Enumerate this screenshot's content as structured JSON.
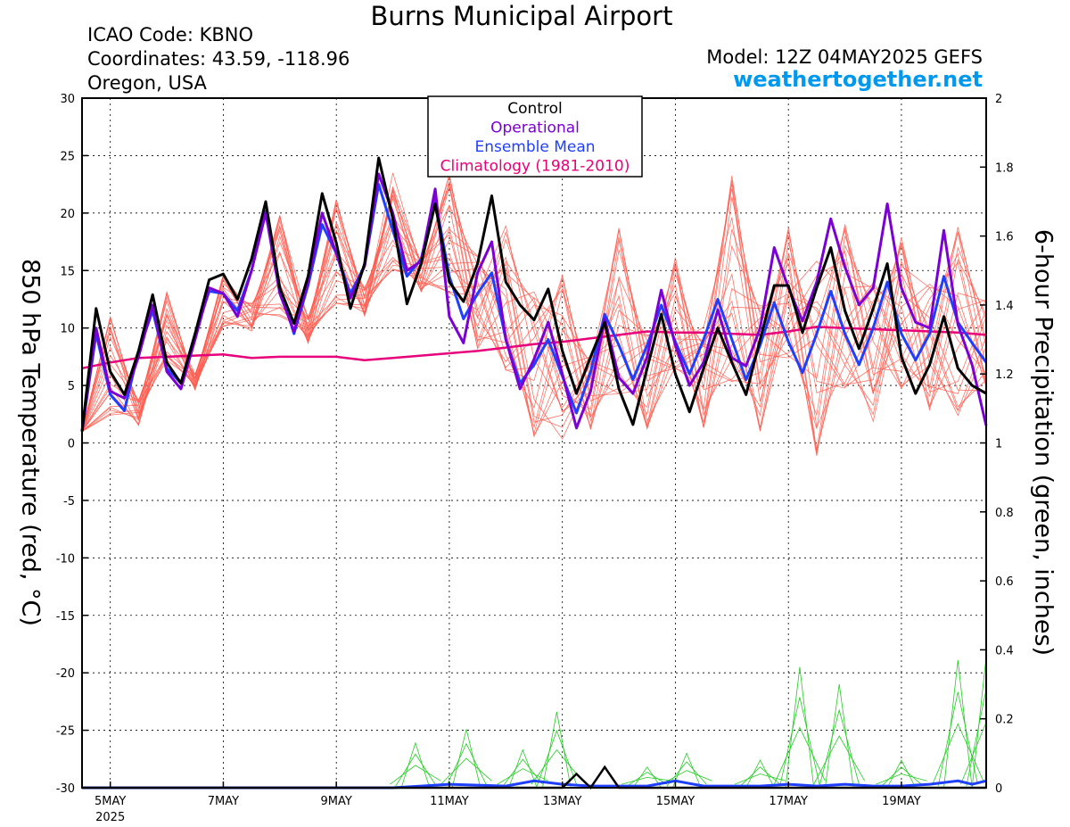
{
  "header": {
    "title": "Burns Municipal Airport",
    "icao": "ICAO Code: KBNO",
    "coordinates": "Coordinates: 43.59, -118.96",
    "region": "Oregon, USA",
    "model": "Model: 12Z 04MAY2025 GEFS",
    "site": "weathertogether.net"
  },
  "colors": {
    "control": "#000000",
    "operational": "#7b00d4",
    "ensemble_mean": "#1f3fff",
    "climatology": "#e8007a",
    "members": "#ff5a4e",
    "precip_members": "#22cc22",
    "site": "#0099ee"
  },
  "chart_data": {
    "type": "line",
    "ylabel": "850 hPa Temperature (red, °C)",
    "y2label": "6-hour Precipitation (green, inches)",
    "ylim": [
      -30,
      30
    ],
    "y2lim": [
      0,
      2
    ],
    "yticks": [
      30,
      25,
      20,
      15,
      10,
      5,
      0,
      -5,
      -10,
      -15,
      -20,
      -25,
      -30
    ],
    "y2ticks": [
      "2",
      "1.8",
      "1.6",
      "1.4",
      "1.2",
      "1",
      "0.8",
      "0.6",
      "0.4",
      "0.2",
      "0"
    ],
    "xlim": [
      4.5,
      20.5
    ],
    "xticks": [
      {
        "day": 5,
        "label": "5MAY",
        "sublabel": "2025"
      },
      {
        "day": 7,
        "label": "7MAY"
      },
      {
        "day": 9,
        "label": "9MAY"
      },
      {
        "day": 11,
        "label": "11MAY"
      },
      {
        "day": 13,
        "label": "13MAY"
      },
      {
        "day": 15,
        "label": "15MAY"
      },
      {
        "day": 17,
        "label": "17MAY"
      },
      {
        "day": 19,
        "label": "19MAY"
      }
    ],
    "grid": true,
    "legend_position": "top-center",
    "legend": [
      "Control",
      "Operational",
      "Ensemble Mean",
      "Climatology (1981-2010)"
    ],
    "series": [
      {
        "name": "Control",
        "x": [
          4.5,
          4.75,
          5.0,
          5.25,
          5.5,
          5.75,
          6.0,
          6.25,
          6.5,
          6.75,
          7.0,
          7.25,
          7.5,
          7.75,
          8.0,
          8.25,
          8.5,
          8.75,
          9.0,
          9.25,
          9.5,
          9.75,
          10.0,
          10.25,
          10.5,
          10.75,
          11.0,
          11.25,
          11.5,
          11.75,
          12.0,
          12.25,
          12.5,
          12.75,
          13.0,
          13.25,
          13.5,
          13.75,
          14.0,
          14.25,
          14.5,
          14.75,
          15.0,
          15.25,
          15.5,
          15.75,
          16.0,
          16.25,
          16.5,
          16.75,
          17.0,
          17.25,
          17.5,
          17.75,
          18.0,
          18.25,
          18.5,
          18.75,
          19.0,
          19.25,
          19.5,
          19.75,
          20.0,
          20.25,
          20.5
        ],
        "values": [
          1.0,
          11.7,
          6.2,
          4.2,
          8.0,
          12.9,
          7.0,
          5.2,
          9.5,
          14.2,
          14.7,
          12.5,
          16.0,
          21.0,
          13.5,
          10.4,
          14.5,
          21.7,
          17.4,
          11.7,
          15.6,
          24.8,
          19.5,
          12.1,
          15.6,
          20.8,
          14.0,
          12.3,
          15.6,
          21.5,
          14.0,
          12.0,
          10.7,
          13.4,
          8.0,
          4.3,
          7.5,
          10.5,
          4.7,
          1.6,
          6.5,
          11.2,
          6.0,
          2.7,
          6.5,
          10.0,
          7.0,
          4.2,
          9.0,
          13.7,
          13.7,
          9.6,
          13.5,
          17.0,
          11.5,
          8.2,
          11.7,
          15.6,
          7.5,
          4.3,
          6.8,
          11.0,
          6.5,
          5.0,
          4.3
        ]
      },
      {
        "name": "Operational",
        "x": [
          4.5,
          4.75,
          5.0,
          5.25,
          5.5,
          5.75,
          6.0,
          6.25,
          6.5,
          6.75,
          7.0,
          7.25,
          7.5,
          7.75,
          8.0,
          8.25,
          8.5,
          8.75,
          9.0,
          9.25,
          9.5,
          9.75,
          10.0,
          10.25,
          10.5,
          10.75,
          11.0,
          11.25,
          11.5,
          11.75,
          12.0,
          12.25,
          12.5,
          12.75,
          13.0,
          13.25,
          13.5,
          13.75,
          14.0,
          14.25,
          14.5,
          14.75,
          15.0,
          15.25,
          15.5,
          15.75,
          16.0,
          16.25,
          16.5,
          16.75,
          17.0,
          17.25,
          17.5,
          17.75,
          18.0,
          18.25,
          18.5,
          18.75,
          19.0,
          19.25,
          19.5,
          19.75,
          20.0,
          20.25,
          20.5
        ],
        "values": [
          1.0,
          10.0,
          4.5,
          3.9,
          7.5,
          12.0,
          6.2,
          4.7,
          9.0,
          13.5,
          13.0,
          11.0,
          15.0,
          20.0,
          13.0,
          9.7,
          14.0,
          20.0,
          16.5,
          12.6,
          15.4,
          23.4,
          20.0,
          15.0,
          15.8,
          22.1,
          11.0,
          8.7,
          14.8,
          17.5,
          9.0,
          4.7,
          7.3,
          10.5,
          6.0,
          1.3,
          4.5,
          10.8,
          5.7,
          4.3,
          7.5,
          13.3,
          8.5,
          5.0,
          7.0,
          11.6,
          7.4,
          6.7,
          10.0,
          17.0,
          13.5,
          10.6,
          14.0,
          19.5,
          15.3,
          12.0,
          13.5,
          20.8,
          13.5,
          10.5,
          10.0,
          18.5,
          10.3,
          6.8,
          1.5
        ]
      },
      {
        "name": "Ensemble Mean",
        "x": [
          4.5,
          4.75,
          5.0,
          5.25,
          5.5,
          5.75,
          6.0,
          6.25,
          6.5,
          6.75,
          7.0,
          7.25,
          7.5,
          7.75,
          8.0,
          8.25,
          8.5,
          8.75,
          9.0,
          9.25,
          9.5,
          9.75,
          10.0,
          10.25,
          10.5,
          10.75,
          11.0,
          11.25,
          11.5,
          11.75,
          12.0,
          12.25,
          12.5,
          12.75,
          13.0,
          13.25,
          13.5,
          13.75,
          14.0,
          14.25,
          14.5,
          14.75,
          15.0,
          15.25,
          15.5,
          15.75,
          16.0,
          16.25,
          16.5,
          16.75,
          17.0,
          17.25,
          17.5,
          17.75,
          18.0,
          18.25,
          18.5,
          18.75,
          19.0,
          19.25,
          19.5,
          19.75,
          20.0,
          20.25,
          20.5
        ],
        "values": [
          1.0,
          9.5,
          4.2,
          2.8,
          8.0,
          11.5,
          6.5,
          5.2,
          9.5,
          13.2,
          13.0,
          11.5,
          15.0,
          20.2,
          13.5,
          9.5,
          13.7,
          19.0,
          16.5,
          13.0,
          15.4,
          22.5,
          18.5,
          14.5,
          16.0,
          21.2,
          14.5,
          10.8,
          13.0,
          14.8,
          9.0,
          5.2,
          6.8,
          9.0,
          5.8,
          2.6,
          6.2,
          11.2,
          8.5,
          5.5,
          8.5,
          12.0,
          8.8,
          6.0,
          9.0,
          12.5,
          9.0,
          5.5,
          8.5,
          12.2,
          8.8,
          6.1,
          9.5,
          13.2,
          9.5,
          6.8,
          10.0,
          14.0,
          9.5,
          7.2,
          9.5,
          14.5,
          10.5,
          8.7,
          7.0
        ]
      },
      {
        "name": "Climatology (1981-2010)",
        "x": [
          4.5,
          5.0,
          5.5,
          6.0,
          6.5,
          7.0,
          7.5,
          8.0,
          8.5,
          9.0,
          9.5,
          10.0,
          10.5,
          11.0,
          11.5,
          12.0,
          12.5,
          13.0,
          13.5,
          14.0,
          14.5,
          15.0,
          15.5,
          16.0,
          16.5,
          17.0,
          17.5,
          18.0,
          18.5,
          19.0,
          19.5,
          20.0,
          20.5
        ],
        "values": [
          6.5,
          7.0,
          7.4,
          7.5,
          7.6,
          7.7,
          7.4,
          7.5,
          7.5,
          7.5,
          7.2,
          7.4,
          7.6,
          7.8,
          8.0,
          8.3,
          8.6,
          8.8,
          9.1,
          9.4,
          9.7,
          9.6,
          9.6,
          9.5,
          9.4,
          9.7,
          10.1,
          10.0,
          9.9,
          9.8,
          9.7,
          9.6,
          9.4
        ]
      }
    ],
    "members_temperature_envelope": {
      "x": [
        4.5,
        5.0,
        5.5,
        6.0,
        6.5,
        7.0,
        7.5,
        8.0,
        8.5,
        9.0,
        9.5,
        10.0,
        10.5,
        11.0,
        11.5,
        12.0,
        12.5,
        13.0,
        13.5,
        14.0,
        14.5,
        15.0,
        15.5,
        16.0,
        16.5,
        17.0,
        17.5,
        18.0,
        18.5,
        19.0,
        19.5,
        20.0,
        20.5
      ],
      "low": [
        1.0,
        2.0,
        1.5,
        6.0,
        4.5,
        10.0,
        9.5,
        9.5,
        8.5,
        12.0,
        10.5,
        14.0,
        13.0,
        13.0,
        6.5,
        5.0,
        0.0,
        -0.5,
        0.0,
        3.0,
        1.0,
        4.0,
        0.0,
        4.0,
        1.0,
        5.0,
        -3.0,
        4.0,
        1.5,
        2.0,
        2.0,
        2.0,
        3.0
      ],
      "high": [
        1.0,
        11.5,
        4.0,
        14.5,
        6.0,
        15.0,
        12.5,
        22.0,
        11.0,
        22.0,
        14.0,
        24.0,
        16.0,
        24.5,
        18.0,
        19.0,
        14.0,
        16.5,
        9.0,
        19.0,
        10.0,
        18.0,
        11.0,
        24.0,
        13.0,
        21.0,
        16.0,
        20.0,
        15.5,
        21.0,
        14.0,
        20.0,
        14.0
      ]
    },
    "precipitation": {
      "units": "inches",
      "control": {
        "x": [
          4.5,
          10.75,
          11.0,
          12.0,
          12.75,
          13.0,
          13.25,
          13.5,
          13.75,
          14.0,
          14.25,
          20.5
        ],
        "values": [
          0,
          0,
          0,
          0,
          0,
          0,
          0.04,
          0,
          0.06,
          0,
          0,
          0
        ]
      },
      "ensemble_mean": {
        "x": [
          4.5,
          10.0,
          10.5,
          11.0,
          12.0,
          12.5,
          13.0,
          13.5,
          14.0,
          14.5,
          15.0,
          15.5,
          16.0,
          16.5,
          17.0,
          17.5,
          18.0,
          18.5,
          19.0,
          19.5,
          20.0,
          20.25,
          20.5
        ],
        "values": [
          0,
          0,
          0.005,
          0.01,
          0.005,
          0.02,
          0.01,
          0.005,
          0.005,
          0.005,
          0.02,
          0.005,
          0.005,
          0.005,
          0.01,
          0.005,
          0.01,
          0.005,
          0.005,
          0.01,
          0.02,
          0.01,
          0.02
        ]
      },
      "member_peaks": [
        {
          "x": 10.4,
          "value": 0.13
        },
        {
          "x": 11.3,
          "value": 0.17
        },
        {
          "x": 12.3,
          "value": 0.11
        },
        {
          "x": 12.9,
          "value": 0.22
        },
        {
          "x": 14.5,
          "value": 0.06
        },
        {
          "x": 15.2,
          "value": 0.1
        },
        {
          "x": 16.5,
          "value": 0.08
        },
        {
          "x": 17.2,
          "value": 0.35
        },
        {
          "x": 17.9,
          "value": 0.3
        },
        {
          "x": 19.0,
          "value": 0.08
        },
        {
          "x": 20.0,
          "value": 0.37
        },
        {
          "x": 20.5,
          "value": 0.38
        }
      ]
    }
  }
}
